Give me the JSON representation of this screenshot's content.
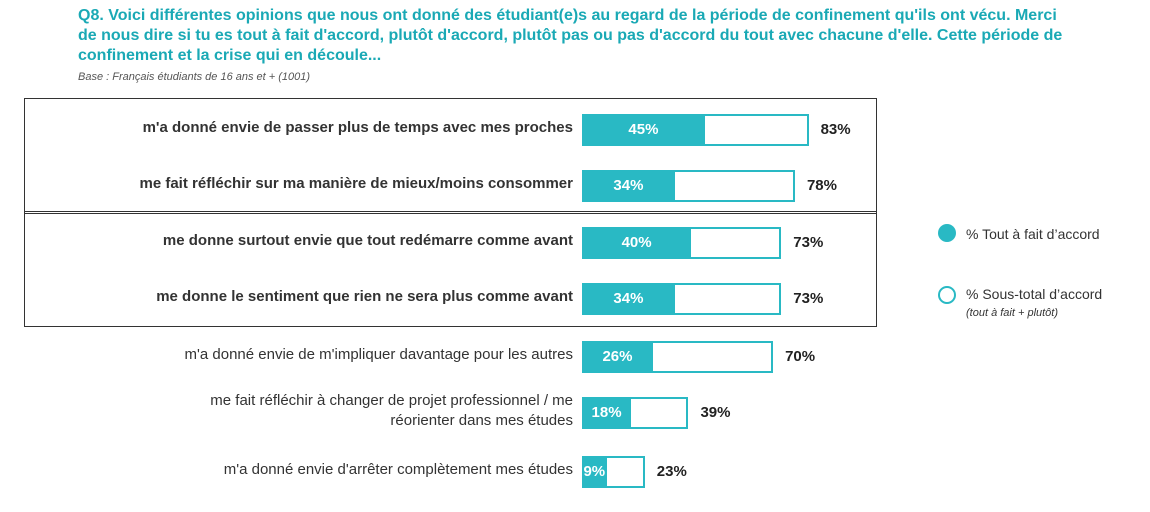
{
  "title": "Q8. Voici différentes opinions que nous ont donné des étudiant(e)s au regard de la période de confinement qu'ils ont vécu. Merci de nous dire si tu es tout à fait d'accord, plutôt d'accord, plutôt pas ou pas d'accord du tout avec chacune d'elle. Cette période de confinement et la crise qui en découle...",
  "base": "Base : Français étudiants de 16 ans et + (1001)",
  "legend": {
    "full_label": "% Tout à fait d’accord",
    "total_label": "% Sous-total d’accord",
    "total_sub": "(tout à fait + plutôt)"
  },
  "colors": {
    "accent": "#29b9c4",
    "title": "#1aa9b5"
  },
  "chart_data": {
    "type": "bar",
    "orientation": "horizontal",
    "categories": [
      "m'a donné envie de passer plus de temps avec mes proches",
      "me fait réfléchir sur ma manière de mieux/moins consommer",
      "me donne surtout envie que tout redémarre comme avant",
      "me donne le sentiment que rien ne sera plus comme avant",
      "m'a donné envie de m'impliquer davantage pour les autres",
      "me fait réfléchir à changer de projet professionnel / me réorienter dans mes études",
      "m'a donné envie d'arrêter complètement mes études"
    ],
    "series": [
      {
        "name": "% Tout à fait d’accord",
        "values": [
          45,
          34,
          40,
          34,
          26,
          18,
          9
        ],
        "labels": [
          "45%",
          "34%",
          "40%",
          "34%",
          "26%",
          "18%",
          "9%"
        ]
      },
      {
        "name": "% Sous-total d’accord",
        "values": [
          83,
          78,
          73,
          73,
          70,
          39,
          23
        ],
        "labels": [
          "83%",
          "78%",
          "73%",
          "73%",
          "70%",
          "39%",
          "23%"
        ]
      }
    ],
    "label_lines": [
      [
        "m'a donné envie de passer plus de temps avec mes proches"
      ],
      [
        "me fait réfléchir sur ma manière de mieux/moins consommer"
      ],
      [
        "me donne surtout envie que tout redémarre comme avant"
      ],
      [
        "me donne le sentiment que rien ne sera plus comme avant"
      ],
      [
        "m'a donné envie de m'impliquer davantage pour les autres"
      ],
      [
        "me fait réfléchir à changer de projet professionnel / me",
        "réorienter dans mes études"
      ],
      [
        "m'a donné envie d'arrêter complètement mes études"
      ]
    ],
    "bold_labels": [
      true,
      true,
      true,
      true,
      false,
      false,
      false
    ],
    "groups": [
      [
        0,
        1
      ],
      [
        2,
        3
      ]
    ],
    "xlim": [
      0,
      100
    ],
    "grid": false,
    "legend_position": "right"
  }
}
